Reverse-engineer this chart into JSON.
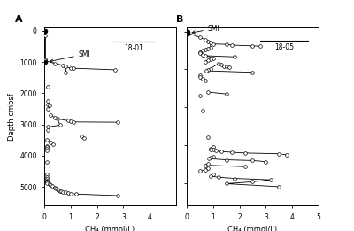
{
  "panel_A_label": "A",
  "panel_B_label": "B",
  "core_A": "18-01",
  "core_B": "18-05",
  "xlabel": "CH₄ (mmol/L)",
  "ylabel": "Depth cmbsf",
  "ylim_A": [
    5600,
    -100
  ],
  "ylim_B": [
    4600,
    -100
  ],
  "xticks_A": [
    0,
    1,
    2,
    3,
    4
  ],
  "xticks_B": [
    0,
    1,
    2,
    3,
    4,
    5
  ],
  "yticks": [
    0,
    1000,
    2000,
    3000,
    4000,
    5000
  ],
  "yticks_B": [
    0,
    1000,
    2000,
    3000,
    4000
  ],
  "SMI_A_depth": 1000,
  "SMI_B_depth": 50,
  "data_A": [
    [
      0.05,
      0
    ],
    [
      0.05,
      150
    ],
    [
      0.05,
      900
    ],
    [
      0.05,
      950
    ],
    [
      0.4,
      1050
    ],
    [
      0.7,
      1100
    ],
    [
      0.8,
      1150
    ],
    [
      1.0,
      1200
    ],
    [
      1.1,
      1200
    ],
    [
      2.7,
      1250
    ],
    [
      0.8,
      1350
    ],
    [
      0.15,
      1800
    ],
    [
      0.15,
      2250
    ],
    [
      0.15,
      2350
    ],
    [
      0.2,
      2400
    ],
    [
      0.15,
      2500
    ],
    [
      0.25,
      2700
    ],
    [
      0.4,
      2780
    ],
    [
      0.5,
      2820
    ],
    [
      0.9,
      2880
    ],
    [
      1.0,
      2900
    ],
    [
      1.1,
      2920
    ],
    [
      2.8,
      2930
    ],
    [
      0.6,
      3020
    ],
    [
      0.15,
      3080
    ],
    [
      0.15,
      3180
    ],
    [
      1.4,
      3380
    ],
    [
      1.5,
      3430
    ],
    [
      0.1,
      3500
    ],
    [
      0.25,
      3580
    ],
    [
      0.35,
      3630
    ],
    [
      0.1,
      3680
    ],
    [
      0.1,
      3730
    ],
    [
      0.1,
      3780
    ],
    [
      0.1,
      3830
    ],
    [
      0.1,
      4200
    ],
    [
      0.1,
      4600
    ],
    [
      0.1,
      4680
    ],
    [
      0.1,
      4740
    ],
    [
      0.1,
      4790
    ],
    [
      0.1,
      4820
    ],
    [
      0.1,
      4840
    ],
    [
      0.1,
      4870
    ],
    [
      0.2,
      4900
    ],
    [
      0.25,
      4940
    ],
    [
      0.3,
      4980
    ],
    [
      0.4,
      5020
    ],
    [
      0.45,
      5060
    ],
    [
      0.5,
      5090
    ],
    [
      0.55,
      5110
    ],
    [
      0.6,
      5130
    ],
    [
      0.65,
      5150
    ],
    [
      0.7,
      5160
    ],
    [
      0.8,
      5175
    ],
    [
      0.9,
      5195
    ],
    [
      1.0,
      5210
    ],
    [
      1.2,
      5230
    ],
    [
      2.8,
      5280
    ]
  ],
  "data_B": [
    [
      0.05,
      0
    ],
    [
      0.05,
      50
    ],
    [
      0.5,
      150
    ],
    [
      0.7,
      220
    ],
    [
      0.8,
      260
    ],
    [
      0.9,
      300
    ],
    [
      1.0,
      330
    ],
    [
      1.5,
      340
    ],
    [
      1.7,
      360
    ],
    [
      2.5,
      380
    ],
    [
      2.8,
      390
    ],
    [
      0.9,
      420
    ],
    [
      0.8,
      450
    ],
    [
      0.7,
      480
    ],
    [
      0.6,
      510
    ],
    [
      0.5,
      540
    ],
    [
      0.5,
      580
    ],
    [
      0.6,
      610
    ],
    [
      0.7,
      640
    ],
    [
      1.8,
      670
    ],
    [
      1.0,
      700
    ],
    [
      0.9,
      730
    ],
    [
      0.8,
      760
    ],
    [
      0.7,
      800
    ],
    [
      1.2,
      850
    ],
    [
      1.3,
      880
    ],
    [
      1.4,
      910
    ],
    [
      1.5,
      930
    ],
    [
      1.6,
      950
    ],
    [
      0.9,
      980
    ],
    [
      0.8,
      1010
    ],
    [
      0.75,
      1040
    ],
    [
      2.5,
      1080
    ],
    [
      0.5,
      1150
    ],
    [
      0.5,
      1200
    ],
    [
      0.6,
      1250
    ],
    [
      0.7,
      1300
    ],
    [
      0.8,
      1600
    ],
    [
      1.5,
      1650
    ],
    [
      0.5,
      1700
    ],
    [
      0.6,
      2100
    ],
    [
      0.8,
      2800
    ],
    [
      1.0,
      3050
    ],
    [
      0.9,
      3090
    ],
    [
      0.9,
      3110
    ],
    [
      1.0,
      3130
    ],
    [
      1.1,
      3150
    ],
    [
      1.3,
      3170
    ],
    [
      1.7,
      3190
    ],
    [
      2.2,
      3210
    ],
    [
      3.5,
      3230
    ],
    [
      3.8,
      3260
    ],
    [
      1.0,
      3300
    ],
    [
      0.9,
      3330
    ],
    [
      0.85,
      3360
    ],
    [
      1.5,
      3390
    ],
    [
      2.5,
      3410
    ],
    [
      3.0,
      3440
    ],
    [
      0.8,
      3490
    ],
    [
      0.7,
      3530
    ],
    [
      2.2,
      3570
    ],
    [
      0.8,
      3610
    ],
    [
      0.7,
      3650
    ],
    [
      0.5,
      3690
    ],
    [
      1.0,
      3780
    ],
    [
      0.9,
      3820
    ],
    [
      1.2,
      3850
    ],
    [
      1.8,
      3880
    ],
    [
      3.2,
      3920
    ],
    [
      2.5,
      3970
    ],
    [
      1.5,
      4020
    ],
    [
      3.5,
      4100
    ]
  ],
  "segs_A": [
    [
      [
        0.05,
        0
      ],
      [
        0.05,
        150
      ],
      [
        0.05,
        900
      ],
      [
        0.05,
        950
      ]
    ],
    [
      [
        0.05,
        950
      ],
      [
        0.4,
        1050
      ],
      [
        0.7,
        1100
      ],
      [
        0.8,
        1150
      ]
    ],
    [
      [
        0.8,
        1150
      ],
      [
        1.0,
        1200
      ],
      [
        1.1,
        1200
      ],
      [
        2.7,
        1250
      ]
    ],
    [
      [
        0.8,
        1150
      ],
      [
        0.8,
        1350
      ]
    ],
    [
      [
        0.15,
        1800
      ]
    ],
    [
      [
        0.15,
        2250
      ],
      [
        0.15,
        2350
      ],
      [
        0.2,
        2400
      ],
      [
        0.15,
        2500
      ]
    ],
    [
      [
        0.25,
        2700
      ],
      [
        0.4,
        2780
      ],
      [
        0.5,
        2820
      ]
    ],
    [
      [
        0.5,
        2820
      ],
      [
        0.9,
        2880
      ],
      [
        1.0,
        2900
      ],
      [
        1.1,
        2920
      ],
      [
        2.8,
        2930
      ]
    ],
    [
      [
        0.5,
        2820
      ],
      [
        0.6,
        3020
      ],
      [
        0.15,
        3080
      ]
    ],
    [
      [
        0.15,
        3180
      ]
    ],
    [
      [
        1.4,
        3380
      ],
      [
        1.5,
        3430
      ]
    ],
    [
      [
        0.1,
        3500
      ],
      [
        0.25,
        3580
      ],
      [
        0.35,
        3630
      ]
    ],
    [
      [
        0.1,
        3680
      ],
      [
        0.1,
        3730
      ],
      [
        0.1,
        3780
      ],
      [
        0.1,
        3830
      ]
    ],
    [
      [
        0.1,
        4200
      ]
    ],
    [
      [
        0.1,
        4600
      ],
      [
        0.1,
        4680
      ],
      [
        0.1,
        4740
      ],
      [
        0.1,
        4790
      ],
      [
        0.1,
        4820
      ],
      [
        0.1,
        4840
      ],
      [
        0.1,
        4870
      ]
    ],
    [
      [
        0.2,
        4900
      ],
      [
        0.25,
        4940
      ],
      [
        0.3,
        4980
      ],
      [
        0.4,
        5020
      ],
      [
        0.45,
        5060
      ],
      [
        0.5,
        5090
      ],
      [
        0.55,
        5110
      ],
      [
        0.6,
        5130
      ],
      [
        0.65,
        5150
      ],
      [
        0.7,
        5160
      ],
      [
        0.8,
        5175
      ],
      [
        0.9,
        5195
      ],
      [
        1.0,
        5210
      ],
      [
        1.2,
        5230
      ],
      [
        2.8,
        5280
      ]
    ]
  ],
  "segs_B": [
    [
      [
        0.05,
        0
      ],
      [
        0.05,
        50
      ]
    ],
    [
      [
        0.05,
        50
      ],
      [
        0.5,
        150
      ],
      [
        0.7,
        220
      ],
      [
        0.8,
        260
      ],
      [
        0.9,
        300
      ]
    ],
    [
      [
        0.9,
        300
      ],
      [
        1.0,
        330
      ],
      [
        1.5,
        340
      ],
      [
        1.7,
        360
      ],
      [
        2.5,
        380
      ],
      [
        2.8,
        390
      ]
    ],
    [
      [
        0.9,
        300
      ],
      [
        0.9,
        420
      ],
      [
        0.8,
        450
      ],
      [
        0.7,
        480
      ],
      [
        0.6,
        510
      ],
      [
        0.5,
        540
      ]
    ],
    [
      [
        0.5,
        580
      ],
      [
        0.6,
        610
      ],
      [
        0.7,
        640
      ],
      [
        1.8,
        670
      ]
    ],
    [
      [
        0.5,
        580
      ],
      [
        1.0,
        700
      ],
      [
        0.9,
        730
      ],
      [
        0.8,
        760
      ],
      [
        0.7,
        800
      ]
    ],
    [
      [
        1.2,
        850
      ],
      [
        1.3,
        880
      ],
      [
        1.4,
        910
      ],
      [
        1.5,
        930
      ],
      [
        1.6,
        950
      ]
    ],
    [
      [
        1.2,
        850
      ],
      [
        0.9,
        980
      ],
      [
        0.8,
        1010
      ],
      [
        0.75,
        1040
      ],
      [
        2.5,
        1080
      ]
    ],
    [
      [
        0.5,
        1150
      ],
      [
        0.5,
        1200
      ],
      [
        0.6,
        1250
      ],
      [
        0.7,
        1300
      ]
    ],
    [
      [
        0.8,
        1600
      ],
      [
        1.5,
        1650
      ]
    ],
    [
      [
        0.5,
        1700
      ]
    ],
    [
      [
        0.6,
        2100
      ]
    ],
    [
      [
        0.8,
        2800
      ]
    ],
    [
      [
        1.0,
        3050
      ],
      [
        0.9,
        3090
      ],
      [
        0.9,
        3110
      ],
      [
        1.0,
        3130
      ],
      [
        1.1,
        3150
      ],
      [
        1.3,
        3170
      ],
      [
        1.7,
        3190
      ],
      [
        2.2,
        3210
      ],
      [
        3.5,
        3230
      ],
      [
        3.8,
        3260
      ]
    ],
    [
      [
        1.0,
        3300
      ],
      [
        0.9,
        3330
      ],
      [
        0.85,
        3360
      ],
      [
        1.5,
        3390
      ],
      [
        2.5,
        3410
      ],
      [
        3.0,
        3440
      ]
    ],
    [
      [
        0.8,
        3490
      ],
      [
        0.7,
        3530
      ],
      [
        2.2,
        3570
      ]
    ],
    [
      [
        0.8,
        3610
      ],
      [
        0.7,
        3650
      ],
      [
        0.5,
        3690
      ]
    ],
    [
      [
        1.0,
        3780
      ],
      [
        0.9,
        3820
      ],
      [
        1.2,
        3850
      ],
      [
        1.8,
        3880
      ],
      [
        3.2,
        3920
      ],
      [
        2.5,
        3970
      ],
      [
        1.5,
        4020
      ],
      [
        3.5,
        4100
      ]
    ]
  ]
}
